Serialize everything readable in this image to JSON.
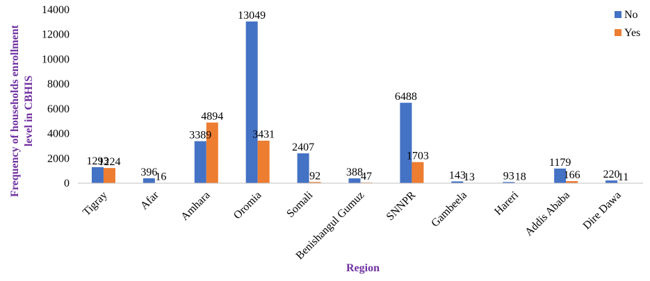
{
  "chart_data": {
    "type": "bar",
    "ylabel": "Frequency of households enrollment level in CBHIS",
    "xlabel": "Region",
    "ylim": [
      0,
      14000
    ],
    "yticks": [
      0,
      2000,
      4000,
      6000,
      8000,
      10000,
      12000,
      14000
    ],
    "grid": false,
    "legend_position": "top-right",
    "categories": [
      "Tigray",
      "Afar",
      "Amhara",
      "Oromia",
      "Somali",
      "Benishangul Gumuz",
      "SNNPR",
      "Gambeela",
      "Hareri",
      "Addis Ababa",
      "Dire Dawa"
    ],
    "series": [
      {
        "name": "No",
        "color": "#4472C4",
        "values": [
          1293,
          396,
          3389,
          13049,
          2407,
          388,
          6488,
          143,
          93,
          1179,
          220
        ]
      },
      {
        "name": "Yes",
        "color": "#ED7D31",
        "values": [
          1224,
          16,
          4894,
          3431,
          92,
          47,
          1703,
          13,
          18,
          166,
          11
        ]
      }
    ]
  }
}
